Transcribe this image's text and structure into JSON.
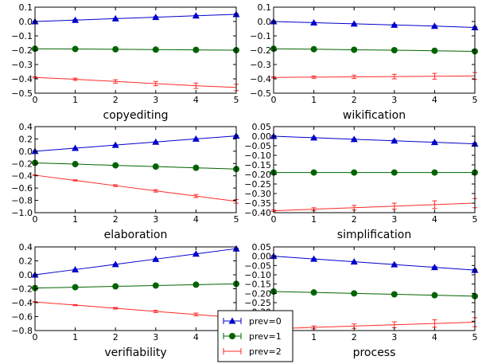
{
  "chart_data": [
    {
      "type": "line",
      "title": "",
      "xlabel": "copyediting",
      "ylabel": "",
      "xlim": [
        0,
        5
      ],
      "ylim": [
        -0.5,
        0.1
      ],
      "yticks": [
        -0.5,
        -0.4,
        -0.3,
        -0.2,
        -0.1,
        0.0,
        0.1
      ],
      "ytick_labels": [
        "−0.5",
        "−0.4",
        "−0.3",
        "−0.2",
        "−0.1",
        "0.0",
        "0.1"
      ],
      "x": [
        0,
        1,
        2,
        3,
        4,
        5
      ],
      "series": [
        {
          "name": "prev=0",
          "values": [
            0.0,
            0.01,
            0.02,
            0.03,
            0.04,
            0.05
          ],
          "err": [
            0.003,
            0.003,
            0.003,
            0.004,
            0.004,
            0.004
          ]
        },
        {
          "name": "prev=1",
          "values": [
            -0.19,
            -0.192,
            -0.194,
            -0.196,
            -0.198,
            -0.2
          ],
          "err": [
            0.003,
            0.003,
            0.003,
            0.003,
            0.004,
            0.004
          ]
        },
        {
          "name": "prev=2",
          "values": [
            -0.39,
            -0.403,
            -0.418,
            -0.433,
            -0.448,
            -0.46
          ],
          "err": [
            0.004,
            0.008,
            0.012,
            0.015,
            0.019,
            0.022
          ]
        }
      ]
    },
    {
      "type": "line",
      "title": "",
      "xlabel": "wikification",
      "ylabel": "",
      "xlim": [
        0,
        5
      ],
      "ylim": [
        -0.5,
        0.1
      ],
      "yticks": [
        -0.5,
        -0.4,
        -0.3,
        -0.2,
        -0.1,
        0.0,
        0.1
      ],
      "ytick_labels": [
        "−0.5",
        "−0.4",
        "−0.3",
        "−0.2",
        "−0.1",
        "0.0",
        "0.1"
      ],
      "x": [
        0,
        1,
        2,
        3,
        4,
        5
      ],
      "series": [
        {
          "name": "prev=0",
          "values": [
            0.0,
            -0.008,
            -0.016,
            -0.024,
            -0.032,
            -0.042
          ],
          "err": [
            0.003,
            0.003,
            0.003,
            0.004,
            0.004,
            0.004
          ]
        },
        {
          "name": "prev=1",
          "values": [
            -0.19,
            -0.193,
            -0.197,
            -0.2,
            -0.204,
            -0.208
          ],
          "err": [
            0.003,
            0.003,
            0.003,
            0.003,
            0.004,
            0.004
          ]
        },
        {
          "name": "prev=2",
          "values": [
            -0.39,
            -0.388,
            -0.386,
            -0.384,
            -0.382,
            -0.38
          ],
          "err": [
            0.004,
            0.008,
            0.012,
            0.016,
            0.02,
            0.024
          ]
        }
      ]
    },
    {
      "type": "line",
      "title": "",
      "xlabel": "elaboration",
      "ylabel": "",
      "xlim": [
        0,
        5
      ],
      "ylim": [
        -1.0,
        0.4
      ],
      "yticks": [
        -1.0,
        -0.8,
        -0.6,
        -0.4,
        -0.2,
        0.0,
        0.2,
        0.4
      ],
      "ytick_labels": [
        "−1.0",
        "−0.8",
        "−0.6",
        "−0.4",
        "−0.2",
        "0.0",
        "0.2",
        "0.4"
      ],
      "x": [
        0,
        1,
        2,
        3,
        4,
        5
      ],
      "series": [
        {
          "name": "prev=0",
          "values": [
            0.0,
            0.05,
            0.1,
            0.15,
            0.2,
            0.25
          ],
          "err": [
            0.004,
            0.004,
            0.004,
            0.005,
            0.005,
            0.005
          ]
        },
        {
          "name": "prev=1",
          "values": [
            -0.19,
            -0.21,
            -0.23,
            -0.25,
            -0.27,
            -0.29
          ],
          "err": [
            0.004,
            0.004,
            0.004,
            0.005,
            0.005,
            0.005
          ]
        },
        {
          "name": "prev=2",
          "values": [
            -0.39,
            -0.475,
            -0.56,
            -0.645,
            -0.73,
            -0.815
          ],
          "err": [
            0.005,
            0.01,
            0.015,
            0.02,
            0.025,
            0.03
          ]
        }
      ]
    },
    {
      "type": "line",
      "title": "",
      "xlabel": "simplification",
      "ylabel": "",
      "xlim": [
        0,
        5
      ],
      "ylim": [
        -0.4,
        0.05
      ],
      "yticks": [
        -0.4,
        -0.35,
        -0.3,
        -0.25,
        -0.2,
        -0.15,
        -0.1,
        -0.05,
        0.0,
        0.05
      ],
      "ytick_labels": [
        "−0.40",
        "−0.35",
        "−0.30",
        "−0.25",
        "−0.20",
        "−0.15",
        "−0.10",
        "−0.05",
        "0.00",
        "0.05"
      ],
      "x": [
        0,
        1,
        2,
        3,
        4,
        5
      ],
      "series": [
        {
          "name": "prev=0",
          "values": [
            0.0,
            -0.008,
            -0.016,
            -0.024,
            -0.032,
            -0.04
          ],
          "err": [
            0.003,
            0.003,
            0.003,
            0.004,
            0.004,
            0.004
          ]
        },
        {
          "name": "prev=1",
          "values": [
            -0.19,
            -0.19,
            -0.19,
            -0.19,
            -0.19,
            -0.19
          ],
          "err": [
            0.003,
            0.003,
            0.003,
            0.003,
            0.004,
            0.004
          ]
        },
        {
          "name": "prev=2",
          "values": [
            -0.39,
            -0.382,
            -0.374,
            -0.366,
            -0.358,
            -0.35
          ],
          "err": [
            0.004,
            0.008,
            0.012,
            0.016,
            0.02,
            0.024
          ]
        }
      ]
    },
    {
      "type": "line",
      "title": "",
      "xlabel": "verifiability",
      "ylabel": "",
      "xlim": [
        0,
        5
      ],
      "ylim": [
        -0.8,
        0.4
      ],
      "yticks": [
        -0.8,
        -0.6,
        -0.4,
        -0.2,
        0.0,
        0.2,
        0.4
      ],
      "ytick_labels": [
        "−0.8",
        "−0.6",
        "−0.4",
        "−0.2",
        "0.0",
        "0.2",
        "0.4"
      ],
      "x": [
        0,
        1,
        2,
        3,
        4,
        5
      ],
      "series": [
        {
          "name": "prev=0",
          "values": [
            0.0,
            0.075,
            0.15,
            0.225,
            0.3,
            0.375
          ],
          "err": [
            0.004,
            0.004,
            0.005,
            0.005,
            0.006,
            0.006
          ]
        },
        {
          "name": "prev=1",
          "values": [
            -0.19,
            -0.178,
            -0.166,
            -0.154,
            -0.142,
            -0.13
          ],
          "err": [
            0.004,
            0.004,
            0.004,
            0.005,
            0.005,
            0.005
          ]
        },
        {
          "name": "prev=2",
          "values": [
            -0.39,
            -0.435,
            -0.48,
            -0.525,
            -0.57,
            -0.615
          ],
          "err": [
            0.005,
            0.008,
            0.012,
            0.016,
            0.02,
            0.024
          ]
        }
      ]
    },
    {
      "type": "line",
      "title": "",
      "xlabel": "process",
      "ylabel": "",
      "xlim": [
        0,
        5
      ],
      "ylim": [
        -0.4,
        0.05
      ],
      "yticks": [
        -0.4,
        -0.35,
        -0.3,
        -0.25,
        -0.2,
        -0.15,
        -0.1,
        -0.05,
        0.0,
        0.05
      ],
      "ytick_labels": [
        "−0.40",
        "−0.35",
        "−0.30",
        "−0.25",
        "−0.20",
        "−0.15",
        "−0.10",
        "−0.05",
        "0.00",
        "0.05"
      ],
      "x": [
        0,
        1,
        2,
        3,
        4,
        5
      ],
      "series": [
        {
          "name": "prev=0",
          "values": [
            0.0,
            -0.015,
            -0.03,
            -0.045,
            -0.06,
            -0.075
          ],
          "err": [
            0.003,
            0.003,
            0.003,
            0.004,
            0.004,
            0.004
          ]
        },
        {
          "name": "prev=1",
          "values": [
            -0.19,
            -0.195,
            -0.2,
            -0.205,
            -0.21,
            -0.215
          ],
          "err": [
            0.003,
            0.003,
            0.004,
            0.004,
            0.005,
            0.005
          ]
        },
        {
          "name": "prev=2",
          "values": [
            -0.39,
            -0.383,
            -0.376,
            -0.369,
            -0.362,
            -0.355
          ],
          "err": [
            0.004,
            0.008,
            0.012,
            0.016,
            0.02,
            0.024
          ]
        }
      ]
    }
  ],
  "xticks": [
    0,
    1,
    2,
    3,
    4,
    5
  ],
  "series_styles": [
    {
      "color": "#0000cc",
      "marker": "triangle"
    },
    {
      "color": "#006400",
      "marker": "circle"
    },
    {
      "color": "#ff2a2a",
      "marker": "none"
    }
  ],
  "legend": {
    "placement": "bottom-center",
    "entries": [
      {
        "label": "prev=0"
      },
      {
        "label": "prev=1"
      },
      {
        "label": "prev=2"
      }
    ]
  }
}
